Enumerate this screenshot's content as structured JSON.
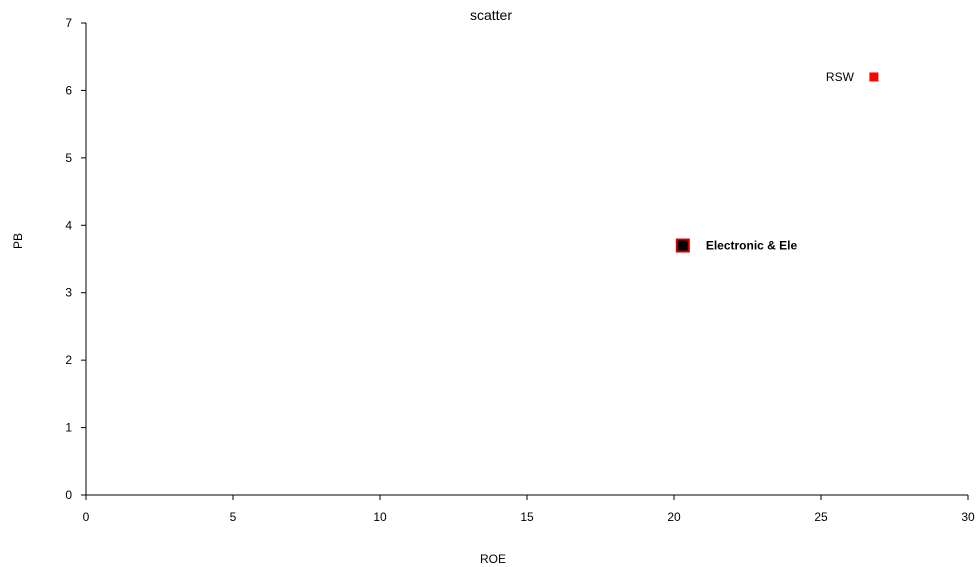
{
  "chart_data": {
    "type": "scatter",
    "title": "scatter",
    "xlabel": "ROE",
    "ylabel": "PB",
    "xlim": [
      0,
      30
    ],
    "ylim": [
      0,
      7
    ],
    "xticks": [
      0,
      5,
      10,
      15,
      20,
      25,
      30
    ],
    "yticks": [
      0,
      1,
      2,
      3,
      4,
      5,
      6,
      7
    ],
    "grid": false,
    "points": [
      {
        "label": "RSW",
        "x": 26.8,
        "y": 6.2,
        "color": "#ff0000",
        "marker": "square",
        "label_side": "left",
        "bold": false,
        "outline": ""
      },
      {
        "label": "Electronic & Ele",
        "x": 20.3,
        "y": 3.7,
        "color": "#000000",
        "marker": "square",
        "label_side": "right",
        "bold": true,
        "outline": "#cc0000"
      }
    ]
  }
}
